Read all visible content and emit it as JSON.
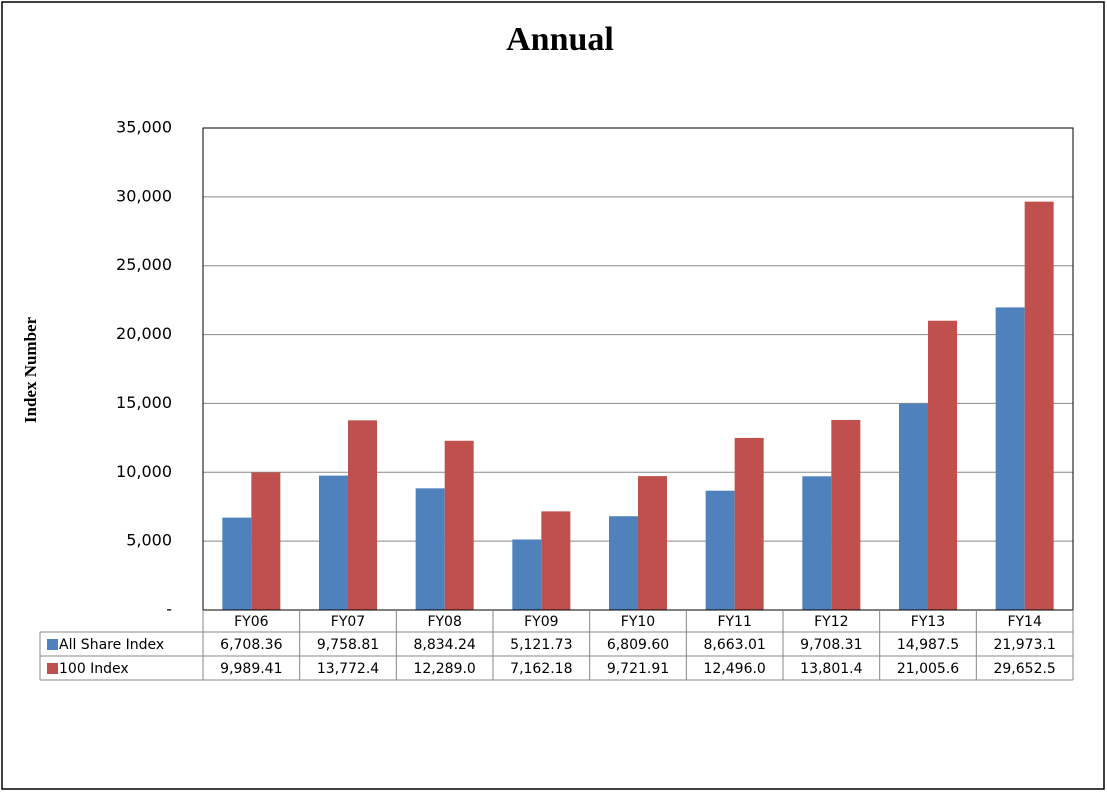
{
  "chart_data": {
    "type": "bar",
    "title": "Annual",
    "y_label": "Index Number",
    "categories": [
      "FY06",
      "FY07",
      "FY08",
      "FY09",
      "FY10",
      "FY11",
      "FY12",
      "FY13",
      "FY14"
    ],
    "series": [
      {
        "name": "All Share Index",
        "color": "#4f81bd",
        "values": [
          6708.36,
          9758.81,
          8834.24,
          5121.73,
          6809.6,
          8663.01,
          9708.31,
          14987.5,
          21973.1
        ],
        "value_labels": [
          "6,708.36",
          "9,758.81",
          "8,834.24",
          "5,121.73",
          "6,809.60",
          "8,663.01",
          "9,708.31",
          "14,987.5",
          "21,973.1"
        ]
      },
      {
        "name": "100 Index",
        "color": "#c0504d",
        "values": [
          9989.41,
          13772.4,
          12289.0,
          7162.18,
          9721.91,
          12496.0,
          13801.4,
          21005.6,
          29652.5
        ],
        "value_labels": [
          "9,989.41",
          "13,772.4",
          "12,289.0",
          "7,162.18",
          "9,721.91",
          "12,496.0",
          "13,801.4",
          "21,005.6",
          "29,652.5"
        ]
      }
    ],
    "ylim": [
      0,
      35000
    ],
    "yticks": [
      {
        "value": 0,
        "label": "-"
      },
      {
        "value": 5000,
        "label": "5,000"
      },
      {
        "value": 10000,
        "label": "10,000"
      },
      {
        "value": 15000,
        "label": "15,000"
      },
      {
        "value": 20000,
        "label": "20,000"
      },
      {
        "value": 25000,
        "label": "25,000"
      },
      {
        "value": 30000,
        "label": "30,000"
      },
      {
        "value": 35000,
        "label": "35,000"
      }
    ],
    "grid": true
  }
}
